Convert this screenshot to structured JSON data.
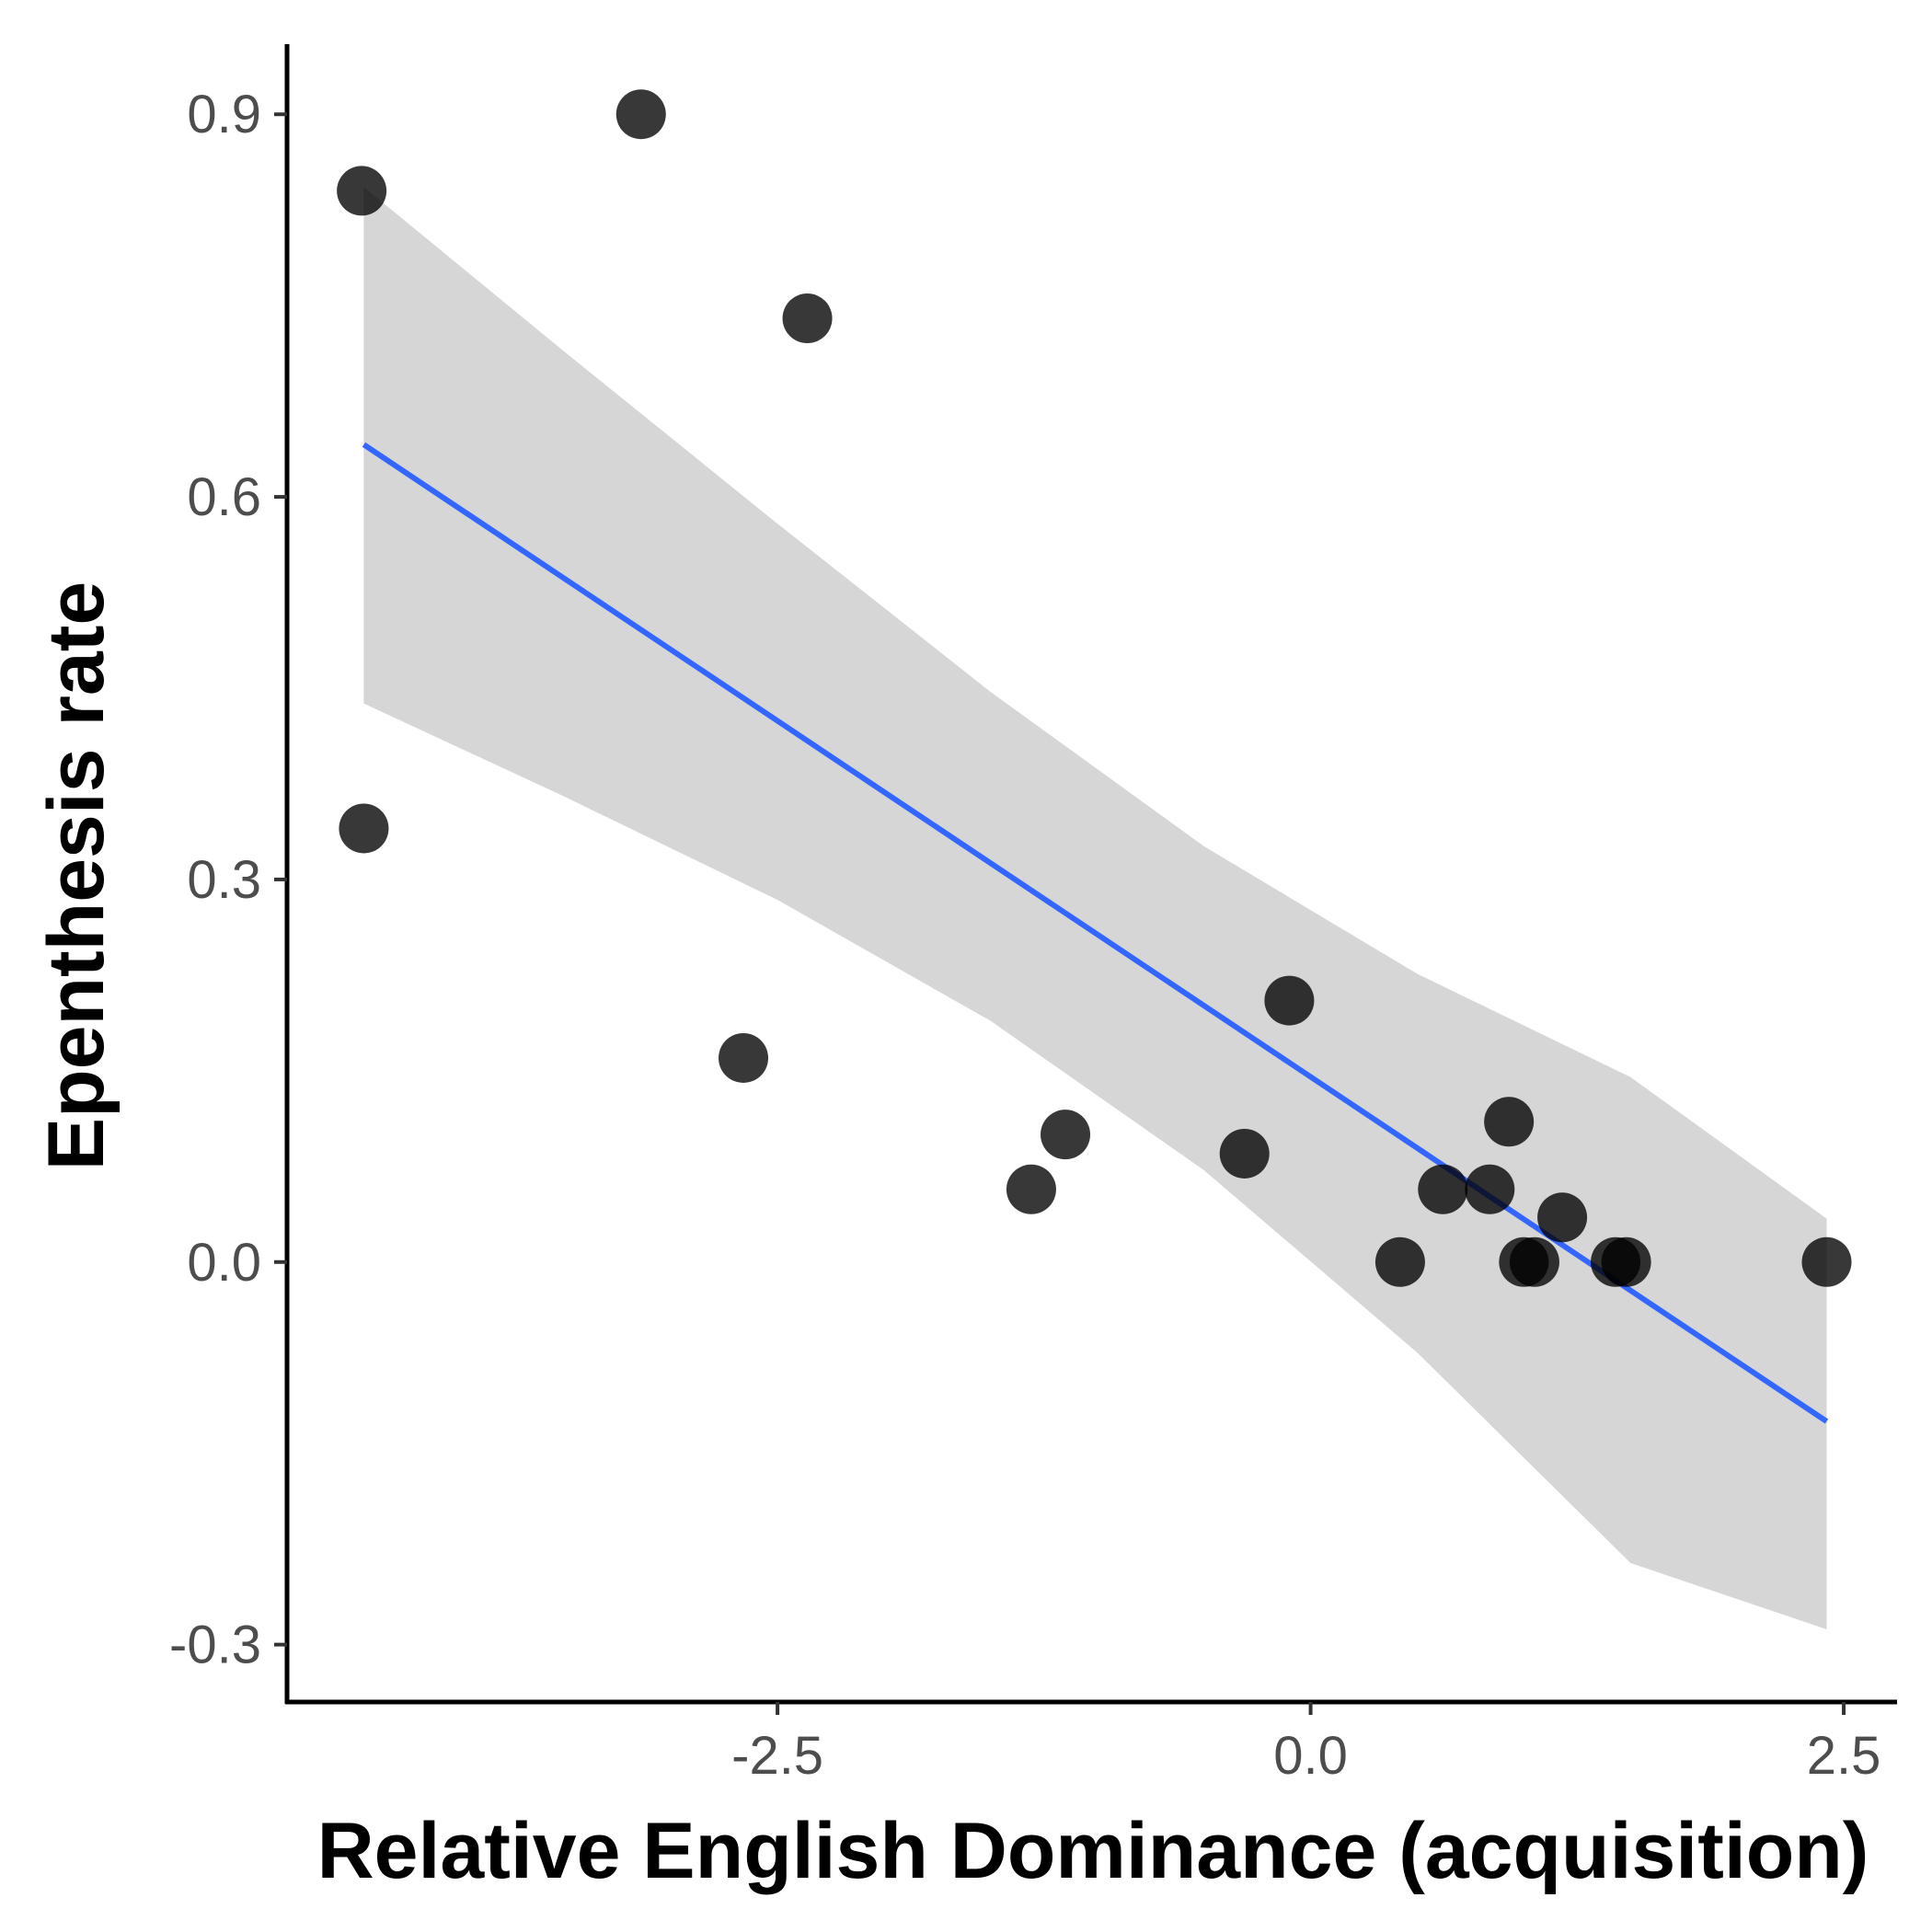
{
  "chart_data": {
    "type": "scatter",
    "xlabel": "Relative English Dominance (acquisition)",
    "ylabel": "Epenthesis rate",
    "xlim": [
      -4.8,
      2.75
    ],
    "ylim": [
      -0.345,
      0.955
    ],
    "x_ticks": [
      -2.5,
      0.0,
      2.5
    ],
    "x_tick_labels": [
      "-2.5",
      "0.0",
      "2.5"
    ],
    "y_ticks": [
      -0.3,
      0.0,
      0.3,
      0.6,
      0.9
    ],
    "y_tick_labels": [
      "-0.3",
      "0.0",
      "0.3",
      "0.6",
      "0.9"
    ],
    "grid": false,
    "points": [
      {
        "x": -4.45,
        "y": 0.84
      },
      {
        "x": -3.14,
        "y": 0.9
      },
      {
        "x": -2.36,
        "y": 0.74
      },
      {
        "x": -4.44,
        "y": 0.34
      },
      {
        "x": -2.66,
        "y": 0.16
      },
      {
        "x": -1.15,
        "y": 0.1
      },
      {
        "x": -1.31,
        "y": 0.057
      },
      {
        "x": -0.31,
        "y": 0.085
      },
      {
        "x": -0.1,
        "y": 0.205
      },
      {
        "x": 0.42,
        "y": 0.0
      },
      {
        "x": 0.62,
        "y": 0.057
      },
      {
        "x": 0.84,
        "y": 0.057
      },
      {
        "x": 0.93,
        "y": 0.11
      },
      {
        "x": 1.0,
        "y": 0.0
      },
      {
        "x": 1.05,
        "y": 0.0
      },
      {
        "x": 1.18,
        "y": 0.035
      },
      {
        "x": 1.43,
        "y": 0.0
      },
      {
        "x": 1.48,
        "y": 0.0
      },
      {
        "x": 2.42,
        "y": 0.0
      }
    ],
    "fit_line": {
      "method": "linear",
      "x": [
        -4.44,
        2.42
      ],
      "y": [
        0.641,
        -0.125
      ]
    },
    "confidence_band": {
      "x": [
        -4.44,
        -3.5,
        -2.5,
        -1.5,
        -0.5,
        0.5,
        1.5,
        2.42
      ],
      "upper": [
        0.843,
        0.714,
        0.579,
        0.447,
        0.326,
        0.226,
        0.145,
        0.034
      ],
      "lower": [
        0.438,
        0.365,
        0.284,
        0.189,
        0.072,
        -0.071,
        -0.236,
        -0.288
      ]
    },
    "colors": {
      "points": "#000000",
      "line": "#3366ff",
      "band": "#d6d6d6",
      "axis": "#000000",
      "tick_text": "#4d4d4d"
    }
  }
}
